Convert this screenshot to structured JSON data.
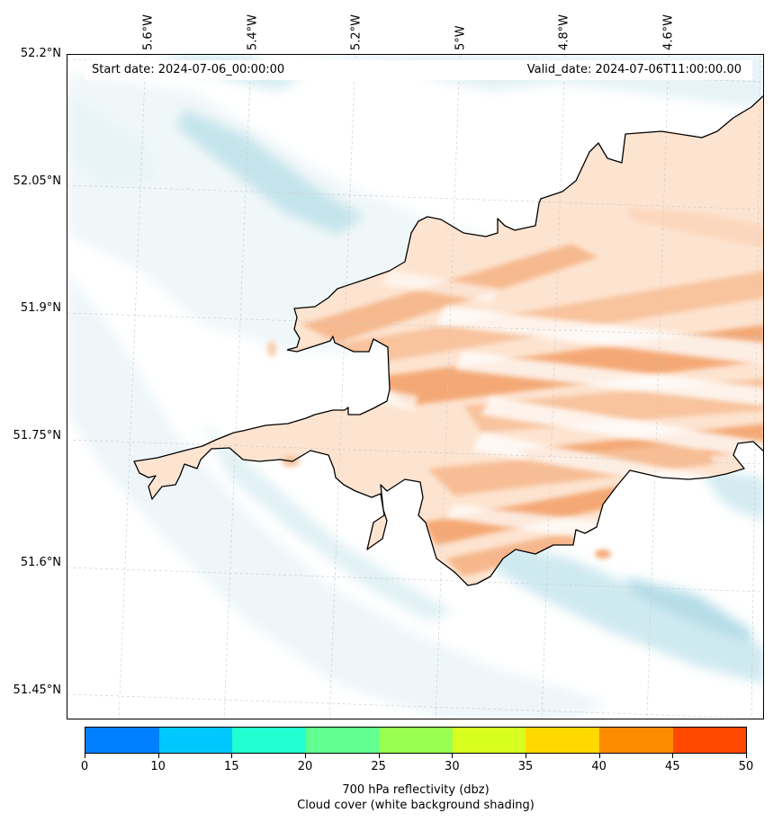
{
  "map": {
    "start_date": "Start date: 2024-07-06_00:00:00",
    "valid_date": "Valid_date: 2024-07-06T11:00:00.00",
    "lon_labels": [
      "5.6°W",
      "5.4°W",
      "5.2°W",
      "5°W",
      "4.8°W",
      "4.6°W"
    ],
    "lat_labels": [
      "52.2°N",
      "52.05°N",
      "51.9°N",
      "51.75°N",
      "51.6°N",
      "51.45°N"
    ],
    "cloud_color": "#b3dde8",
    "reflectivity_low_color": "#f4a874",
    "coastline_color": "#000000",
    "gridline_color": "#c8c8c8"
  },
  "colorbar": {
    "ticks": [
      "0",
      "10",
      "15",
      "20",
      "25",
      "30",
      "35",
      "40",
      "45",
      "50"
    ],
    "colors": [
      "#0080ff",
      "#00c8ff",
      "#20ffd0",
      "#60ff90",
      "#98ff50",
      "#d8ff20",
      "#ffd800",
      "#ff8c00",
      "#ff4800"
    ],
    "label_line1": "700 hPa reflectivity (dbz)",
    "label_line2": "Cloud cover (white background shading)"
  }
}
